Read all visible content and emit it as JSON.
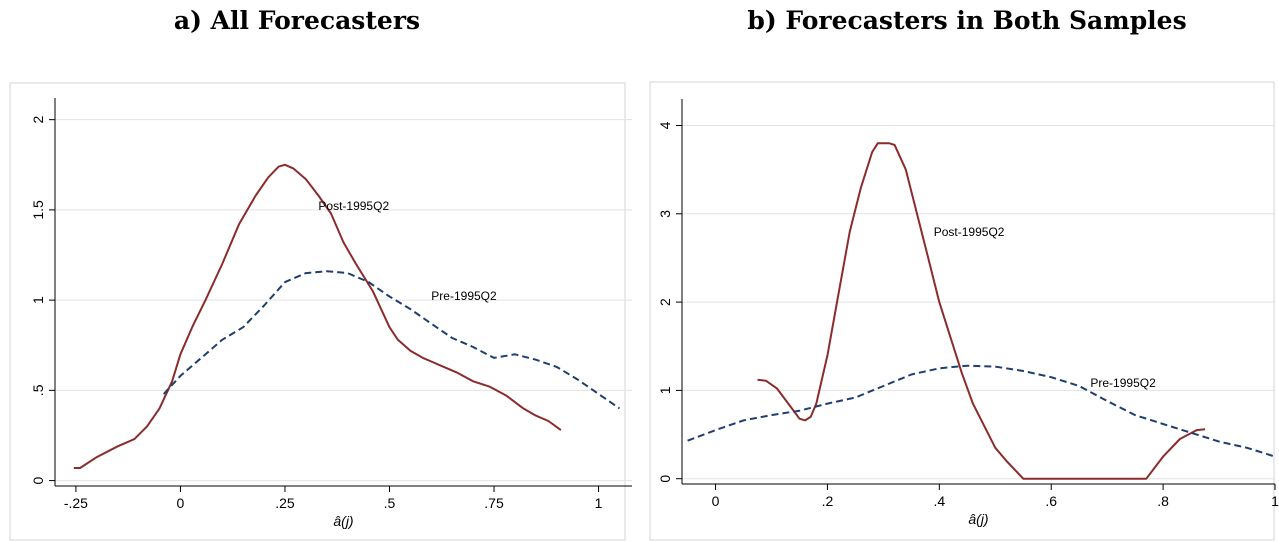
{
  "chart_data": [
    {
      "type": "line",
      "title": "a) All Forecasters",
      "xlabel": "â(j)",
      "ylabel": "",
      "xlim": [
        -0.3,
        1.08
      ],
      "ylim": [
        -0.03,
        2.12
      ],
      "xticks": [
        {
          "v": -0.25,
          "label": "-.25"
        },
        {
          "v": 0,
          "label": "0"
        },
        {
          "v": 0.25,
          "label": ".25"
        },
        {
          "v": 0.5,
          "label": ".5"
        },
        {
          "v": 0.75,
          "label": ".75"
        },
        {
          "v": 1,
          "label": "1"
        }
      ],
      "yticks": [
        {
          "v": 0,
          "label": "0"
        },
        {
          "v": 0.5,
          "label": ".5"
        },
        {
          "v": 1,
          "label": "1"
        },
        {
          "v": 1.5,
          "label": "1.5"
        },
        {
          "v": 2,
          "label": "2"
        }
      ],
      "grid": true,
      "series": [
        {
          "name": "Post-1995Q2",
          "color": "#8b2c2c",
          "dash": "solid",
          "label_at": [
            0.33,
            1.5
          ],
          "x": [
            -0.255,
            -0.24,
            -0.2,
            -0.15,
            -0.11,
            -0.08,
            -0.05,
            -0.02,
            0.0,
            0.03,
            0.06,
            0.1,
            0.14,
            0.18,
            0.21,
            0.235,
            0.25,
            0.27,
            0.3,
            0.33,
            0.36,
            0.39,
            0.42,
            0.46,
            0.5,
            0.52,
            0.55,
            0.58,
            0.6,
            0.63,
            0.66,
            0.7,
            0.74,
            0.78,
            0.82,
            0.85,
            0.88,
            0.91
          ],
          "y": [
            0.07,
            0.07,
            0.13,
            0.19,
            0.23,
            0.3,
            0.4,
            0.55,
            0.7,
            0.86,
            1.0,
            1.2,
            1.42,
            1.58,
            1.68,
            1.74,
            1.75,
            1.73,
            1.67,
            1.58,
            1.48,
            1.32,
            1.2,
            1.05,
            0.85,
            0.78,
            0.72,
            0.68,
            0.66,
            0.63,
            0.6,
            0.55,
            0.52,
            0.47,
            0.4,
            0.36,
            0.33,
            0.28
          ]
        },
        {
          "name": "Pre-1995Q2",
          "color": "#1f3f6e",
          "dash": "dashed",
          "label_at": [
            0.6,
            1.0
          ],
          "x": [
            -0.04,
            0.0,
            0.05,
            0.1,
            0.15,
            0.2,
            0.25,
            0.3,
            0.35,
            0.4,
            0.45,
            0.5,
            0.55,
            0.6,
            0.65,
            0.7,
            0.75,
            0.8,
            0.85,
            0.9,
            0.95,
            1.0,
            1.05
          ],
          "y": [
            0.48,
            0.58,
            0.68,
            0.78,
            0.85,
            0.97,
            1.1,
            1.15,
            1.16,
            1.15,
            1.1,
            1.02,
            0.95,
            0.87,
            0.79,
            0.74,
            0.68,
            0.7,
            0.67,
            0.63,
            0.56,
            0.48,
            0.4
          ]
        }
      ]
    },
    {
      "type": "line",
      "title": "b) Forecasters in Both Samples",
      "xlabel": "â(j)",
      "ylabel": "",
      "xlim": [
        -0.06,
        1.0
      ],
      "ylim": [
        -0.06,
        4.3
      ],
      "xticks": [
        {
          "v": 0,
          "label": "0"
        },
        {
          "v": 0.2,
          "label": ".2"
        },
        {
          "v": 0.4,
          "label": ".4"
        },
        {
          "v": 0.6,
          "label": ".6"
        },
        {
          "v": 0.8,
          "label": ".8"
        },
        {
          "v": 1,
          "label": "1"
        }
      ],
      "yticks": [
        {
          "v": 0,
          "label": "0"
        },
        {
          "v": 1,
          "label": "1"
        },
        {
          "v": 2,
          "label": "2"
        },
        {
          "v": 3,
          "label": "3"
        },
        {
          "v": 4,
          "label": "4"
        }
      ],
      "grid": true,
      "series": [
        {
          "name": "Post-1995Q2",
          "color": "#8b2c2c",
          "dash": "solid",
          "label_at": [
            0.39,
            2.75
          ],
          "x": [
            0.075,
            0.09,
            0.11,
            0.13,
            0.15,
            0.16,
            0.17,
            0.18,
            0.2,
            0.22,
            0.24,
            0.26,
            0.28,
            0.29,
            0.3,
            0.31,
            0.32,
            0.34,
            0.36,
            0.38,
            0.4,
            0.42,
            0.44,
            0.46,
            0.48,
            0.5,
            0.52,
            0.55,
            0.6,
            0.65,
            0.7,
            0.77,
            0.8,
            0.83,
            0.86,
            0.875
          ],
          "y": [
            1.12,
            1.11,
            1.02,
            0.85,
            0.68,
            0.66,
            0.7,
            0.85,
            1.4,
            2.1,
            2.8,
            3.3,
            3.7,
            3.8,
            3.8,
            3.8,
            3.78,
            3.5,
            3.0,
            2.5,
            2.0,
            1.6,
            1.2,
            0.85,
            0.6,
            0.35,
            0.2,
            0.0,
            0.0,
            0.0,
            0.0,
            0.0,
            0.25,
            0.45,
            0.55,
            0.56
          ]
        },
        {
          "name": "Pre-1995Q2",
          "color": "#1f3f6e",
          "dash": "dashed",
          "label_at": [
            0.67,
            1.04
          ],
          "x": [
            -0.05,
            0.0,
            0.05,
            0.1,
            0.15,
            0.2,
            0.25,
            0.3,
            0.35,
            0.4,
            0.45,
            0.5,
            0.55,
            0.6,
            0.65,
            0.7,
            0.75,
            0.8,
            0.85,
            0.9,
            0.95,
            1.0
          ],
          "y": [
            0.43,
            0.55,
            0.66,
            0.72,
            0.77,
            0.85,
            0.92,
            1.05,
            1.18,
            1.25,
            1.28,
            1.27,
            1.22,
            1.15,
            1.05,
            0.88,
            0.72,
            0.62,
            0.52,
            0.42,
            0.35,
            0.25
          ]
        }
      ]
    }
  ]
}
